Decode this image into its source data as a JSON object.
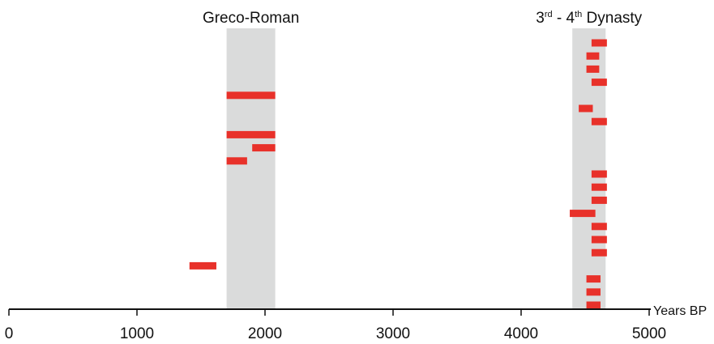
{
  "chart_data": {
    "type": "range-bar",
    "x_axis": {
      "label": "Years BP",
      "ticks": [
        0,
        1000,
        2000,
        3000,
        4000,
        5000
      ],
      "range": [
        0,
        5000
      ]
    },
    "periods": [
      {
        "label": "Greco-Roman",
        "start": 1700,
        "end": 2080
      },
      {
        "label_parts": [
          "3",
          "rd",
          " - 4",
          "th",
          " Dynasty"
        ],
        "start": 4400,
        "end": 4660
      }
    ],
    "ranges": [
      {
        "start": 4550,
        "end": 4670,
        "row": 1
      },
      {
        "start": 4510,
        "end": 4610,
        "row": 2
      },
      {
        "start": 4510,
        "end": 4610,
        "row": 3
      },
      {
        "start": 4550,
        "end": 4670,
        "row": 4
      },
      {
        "start": 1700,
        "end": 2080,
        "row": 5
      },
      {
        "start": 4450,
        "end": 4560,
        "row": 6
      },
      {
        "start": 4550,
        "end": 4670,
        "row": 7
      },
      {
        "start": 1700,
        "end": 2080,
        "row": 8
      },
      {
        "start": 1900,
        "end": 2080,
        "row": 9
      },
      {
        "start": 1700,
        "end": 1860,
        "row": 10
      },
      {
        "start": 4550,
        "end": 4670,
        "row": 11
      },
      {
        "start": 4550,
        "end": 4670,
        "row": 12
      },
      {
        "start": 4550,
        "end": 4670,
        "row": 13
      },
      {
        "start": 4380,
        "end": 4580,
        "row": 14
      },
      {
        "start": 4550,
        "end": 4670,
        "row": 15
      },
      {
        "start": 4550,
        "end": 4670,
        "row": 16
      },
      {
        "start": 4550,
        "end": 4670,
        "row": 17
      },
      {
        "start": 1410,
        "end": 1620,
        "row": 18
      },
      {
        "start": 4510,
        "end": 4620,
        "row": 19
      },
      {
        "start": 4510,
        "end": 4620,
        "row": 20
      },
      {
        "start": 4510,
        "end": 4620,
        "row": 21
      }
    ],
    "colors": {
      "range_bar": "#e8312a",
      "period_band": "#dadbdb",
      "axis": "#111111"
    },
    "grid": false
  }
}
